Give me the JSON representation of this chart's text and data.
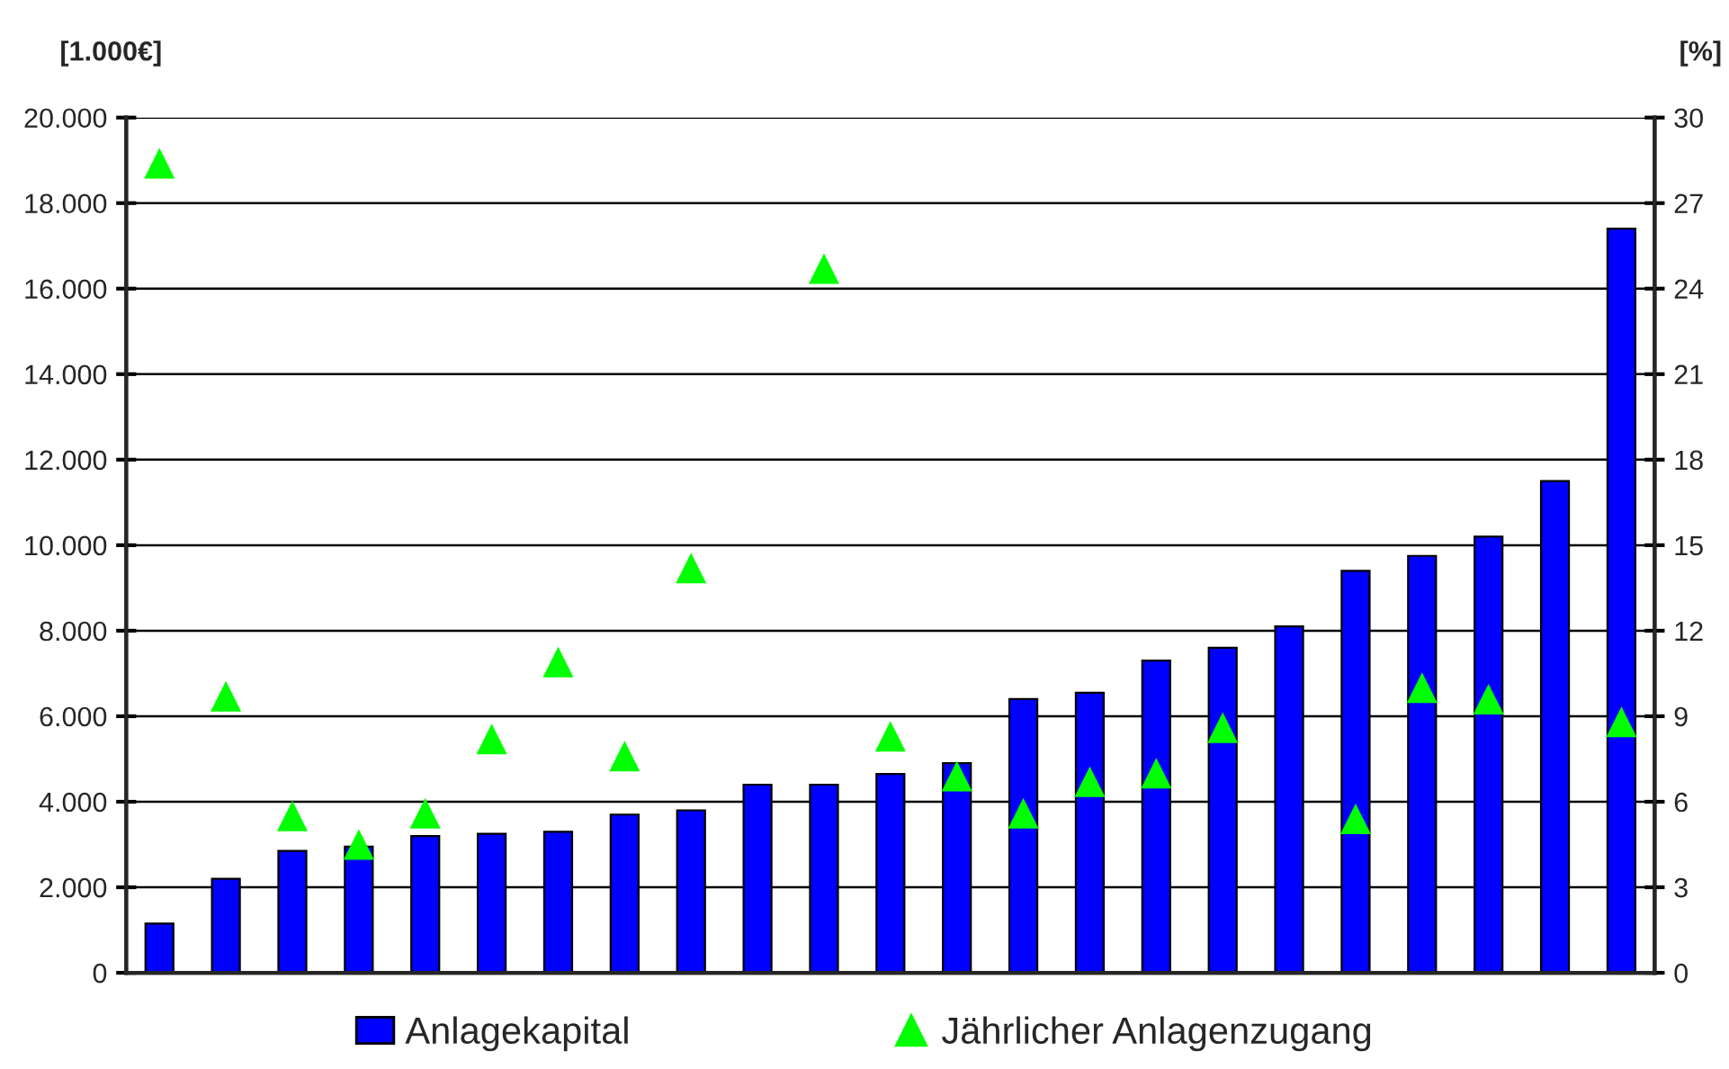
{
  "chart_data": {
    "type": "bar",
    "ylabel": "[1.000€]",
    "y2label": "[%]",
    "categories": [
      null,
      null,
      null,
      null,
      null,
      null,
      null,
      null,
      null,
      null,
      null,
      null,
      null,
      null,
      null,
      null,
      null,
      null,
      null,
      null,
      null,
      null,
      null
    ],
    "series": [
      {
        "name": "Anlagekapital",
        "color": "#0000ff",
        "values": [
          1150,
          2200,
          2850,
          2950,
          3200,
          3250,
          3300,
          3700,
          3800,
          4400,
          4400,
          4650,
          4900,
          6400,
          6550,
          7300,
          7600,
          8100,
          9400,
          9750,
          10200,
          11500,
          17400
        ]
      },
      {
        "name": "Jährlicher Anlagenzugang",
        "type": "scatter",
        "axis": "y2",
        "color": "#00ff00",
        "marker": "triangle",
        "values": [
          28.4,
          9.7,
          5.5,
          4.5,
          5.6,
          8.2,
          10.9,
          7.6,
          14.2,
          null,
          24.7,
          8.3,
          6.9,
          5.6,
          6.7,
          7.0,
          8.6,
          null,
          5.4,
          10.0,
          9.6,
          null,
          8.8
        ]
      }
    ],
    "ylim": [
      0,
      20000
    ],
    "yticks": [
      {
        "value": 0,
        "label": "0"
      },
      {
        "value": 2000,
        "label": "2.000"
      },
      {
        "value": 4000,
        "label": "4.000"
      },
      {
        "value": 6000,
        "label": "6.000"
      },
      {
        "value": 8000,
        "label": "8.000"
      },
      {
        "value": 10000,
        "label": "10.000"
      },
      {
        "value": 12000,
        "label": "12.000"
      },
      {
        "value": 14000,
        "label": "14.000"
      },
      {
        "value": 16000,
        "label": "16.000"
      },
      {
        "value": 18000,
        "label": "18.000"
      },
      {
        "value": 20000,
        "label": "20.000"
      }
    ],
    "y2lim": [
      0,
      30
    ],
    "y2ticks": [
      0,
      3,
      6,
      9,
      12,
      15,
      18,
      21,
      24,
      27,
      30
    ],
    "grid": "y",
    "legend": "bottom"
  }
}
